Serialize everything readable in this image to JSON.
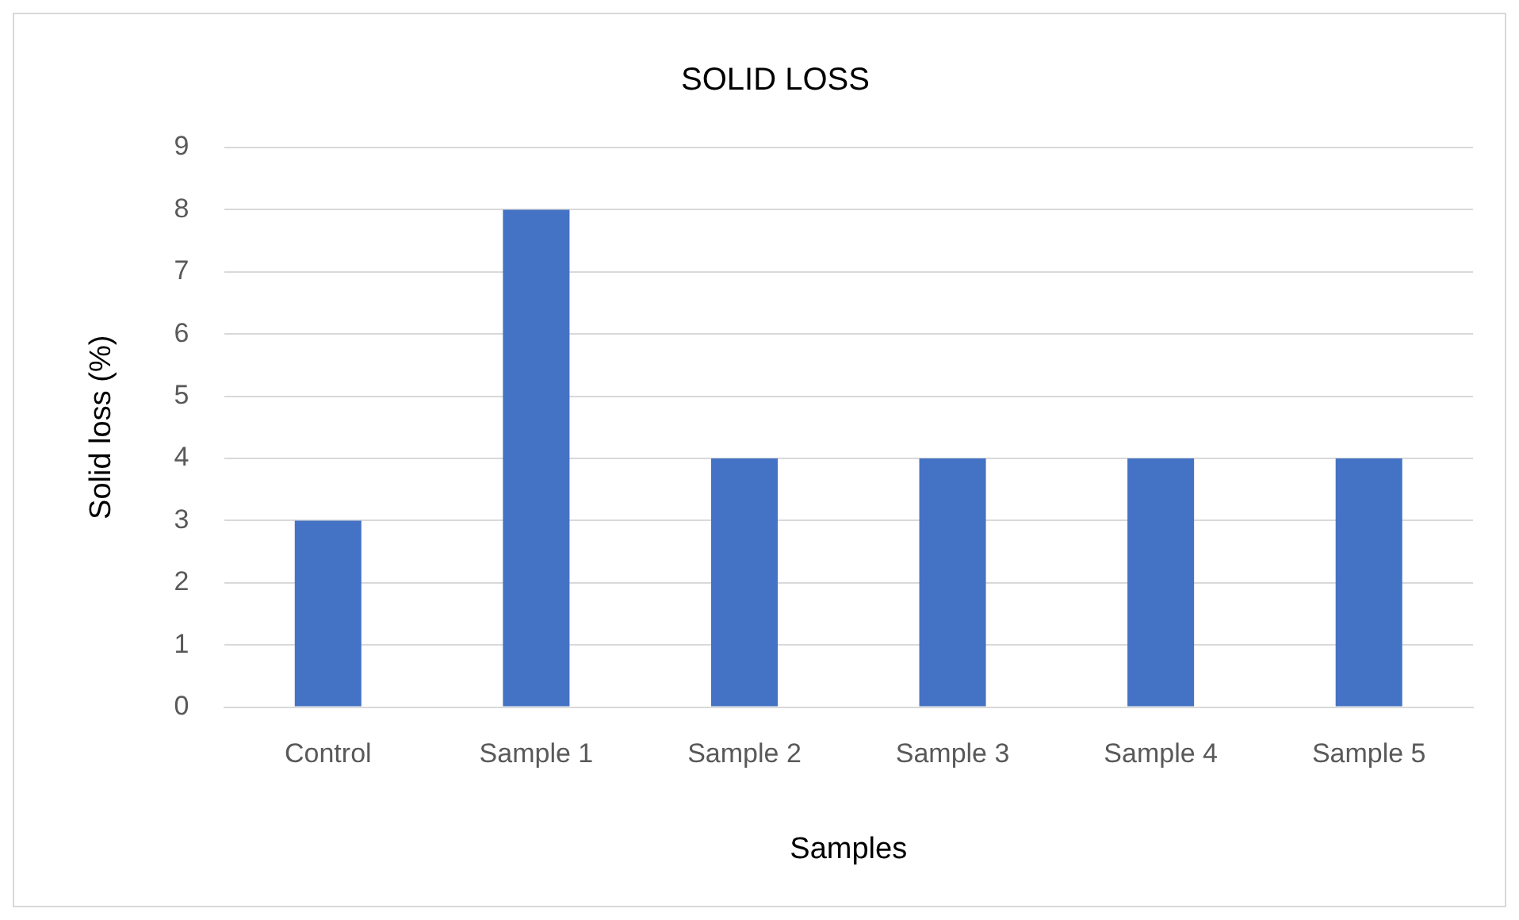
{
  "chart_data": {
    "type": "bar",
    "title": "SOLID LOSS",
    "xlabel": "Samples",
    "ylabel": "Solid loss (%)",
    "categories": [
      "Control",
      "Sample 1",
      "Sample 2",
      "Sample 3",
      "Sample 4",
      "Sample 5"
    ],
    "values": [
      3,
      8,
      4,
      4,
      4,
      4
    ],
    "color": "#4472c4",
    "ylim": [
      0,
      9
    ],
    "yticks": [
      0,
      1,
      2,
      3,
      4,
      5,
      6,
      7,
      8,
      9
    ],
    "grid": "y"
  }
}
